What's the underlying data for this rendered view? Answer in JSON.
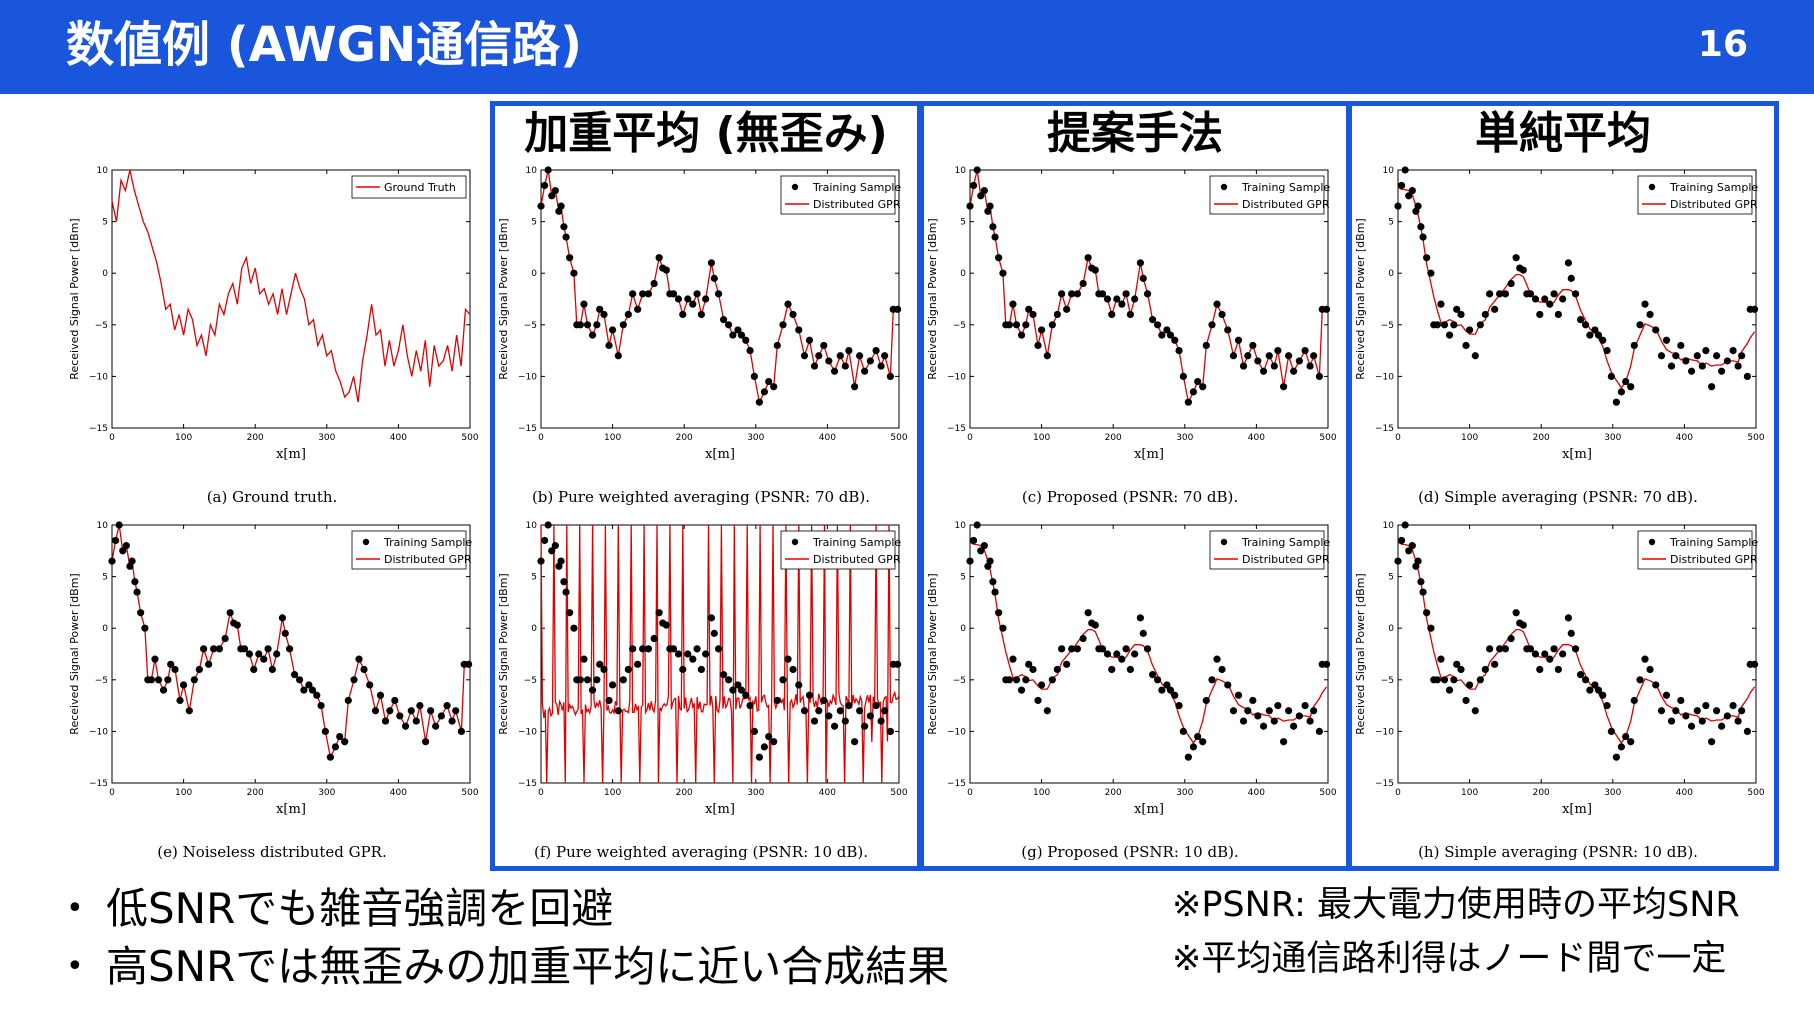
{
  "header": {
    "title": "数値例 (AWGN通信路)",
    "page_number": "16",
    "color": "#1a56db"
  },
  "columns": [
    {
      "label": "加重平均 (無歪み)"
    },
    {
      "label": "提案手法"
    },
    {
      "label": "単純平均"
    }
  ],
  "legend": {
    "training": "Training Sample",
    "gpr": "Distributed GPR",
    "truth": "Ground Truth"
  },
  "chart_data": {
    "type": "line",
    "xlabel": "x[m]",
    "ylabel": "Received Signal Power [dBm]",
    "xlim": [
      0,
      500
    ],
    "ylim": [
      -15,
      10
    ],
    "xticks": [
      "0",
      "100",
      "200",
      "300",
      "400",
      "500"
    ],
    "yticks": [
      "10",
      "5",
      "0",
      "−5",
      "−10",
      "−15"
    ],
    "line_color": "#e00000",
    "marker_color": "#000000",
    "samples": {
      "x": [
        0,
        5,
        10,
        15,
        20,
        25,
        28,
        32,
        35,
        40,
        46,
        50,
        55,
        60,
        65,
        72,
        78,
        82,
        88,
        95,
        100,
        108,
        115,
        122,
        128,
        135,
        142,
        150,
        158,
        165,
        170,
        175,
        180,
        185,
        192,
        198,
        205,
        212,
        218,
        224,
        230,
        238,
        242,
        248,
        255,
        262,
        268,
        275,
        280,
        286,
        292,
        298,
        305,
        312,
        318,
        325,
        330,
        338,
        345,
        352,
        360,
        368,
        375,
        382,
        388,
        395,
        402,
        410,
        418,
        425,
        430,
        438,
        445,
        452,
        460,
        468,
        475,
        480,
        488,
        492,
        498
      ],
      "y": [
        6.5,
        8.5,
        10,
        7.5,
        8,
        6,
        6.5,
        4.5,
        3.5,
        1.5,
        0,
        -5,
        -5,
        -3,
        -5,
        -6,
        -5,
        -3.5,
        -4,
        -7,
        -5.5,
        -8,
        -5,
        -4,
        -2,
        -3.5,
        -2,
        -2,
        -1,
        1.5,
        0.5,
        0.3,
        -2,
        -2,
        -2.5,
        -4,
        -2.5,
        -3,
        -2,
        -4,
        -2.5,
        1,
        -0.5,
        -2,
        -4.5,
        -5,
        -6,
        -5.5,
        -6,
        -6.5,
        -7.5,
        -10,
        -12.5,
        -11.5,
        -10.5,
        -11,
        -7,
        -5,
        -3,
        -4,
        -5.5,
        -8,
        -6.5,
        -9,
        -8,
        -7,
        -8.5,
        -9.5,
        -8,
        -9,
        -7.5,
        -11,
        -8,
        -9.5,
        -8.5,
        -7.5,
        -9,
        -8,
        -10,
        -3.5,
        -3.5
      ]
    },
    "ground_truth": [
      7,
      5,
      9,
      8,
      10,
      8,
      6.5,
      5,
      4,
      2.5,
      1,
      -1,
      -3.5,
      -3,
      -5.5,
      -4,
      -6,
      -3.5,
      -4.5,
      -7,
      -6,
      -8,
      -5,
      -6,
      -3,
      -4,
      -2,
      -1,
      -3,
      0.5,
      1.5,
      -1,
      0.5,
      -2,
      -1.5,
      -3,
      -2,
      -4,
      -1.5,
      -4,
      -2,
      0,
      -1.5,
      -2.5,
      -5,
      -4.5,
      -7,
      -6,
      -8,
      -7.5,
      -9.5,
      -10.5,
      -12,
      -11.5,
      -10,
      -12.5,
      -8.5,
      -6,
      -3,
      -6,
      -5.5,
      -9,
      -6.5,
      -9,
      -7.5,
      -5,
      -8,
      -10,
      -7.5,
      -9.5,
      -6.5,
      -11,
      -7,
      -9,
      -8.5,
      -7,
      -9.5,
      -6,
      -9,
      -3.5,
      -4
    ],
    "plots": [
      {
        "caption": "(a) Ground truth.",
        "legend": "truth"
      },
      {
        "caption": "(b) Pure weighted averaging (PSNR: 70 dB).",
        "legend": "both",
        "mode": "interp"
      },
      {
        "caption": "(c) Proposed (PSNR: 70 dB).",
        "legend": "both",
        "mode": "interp"
      },
      {
        "caption": "(d) Simple averaging (PSNR: 70 dB).",
        "legend": "both",
        "mode": "smooth"
      },
      {
        "caption": "(e) Noiseless distributed GPR.",
        "legend": "both",
        "mode": "interp"
      },
      {
        "caption": "(f) Pure weighted averaging (PSNR: 10 dB).",
        "legend": "both",
        "mode": "noisy"
      },
      {
        "caption": "(g) Proposed (PSNR: 10 dB).",
        "legend": "both",
        "mode": "smooth"
      },
      {
        "caption": "(h) Simple averaging (PSNR: 10 dB).",
        "legend": "both",
        "mode": "smooth"
      }
    ]
  },
  "bullets": [
    "低SNRでも雑音強調を回避",
    "高SNRでは無歪みの加重平均に近い合成結果"
  ],
  "notes": [
    "※PSNR: 最大電力使用時の平均SNR",
    "※平均通信路利得はノード間で一定"
  ]
}
